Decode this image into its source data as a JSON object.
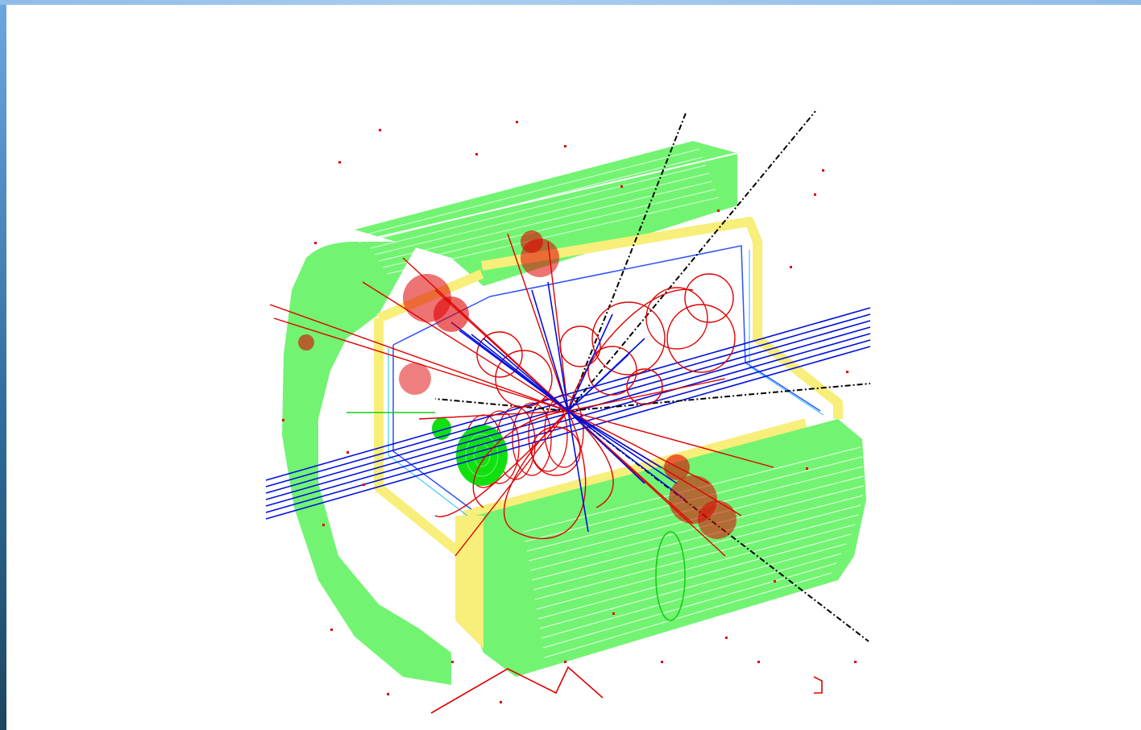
{
  "image": {
    "subject": "event-display",
    "colors": {
      "calorimeter": "#72f472",
      "cryostat": "#f8ee7a",
      "tracks": "#e00000",
      "beam": "#0010e0",
      "jets": "#000000",
      "muon": "#10d010"
    }
  }
}
